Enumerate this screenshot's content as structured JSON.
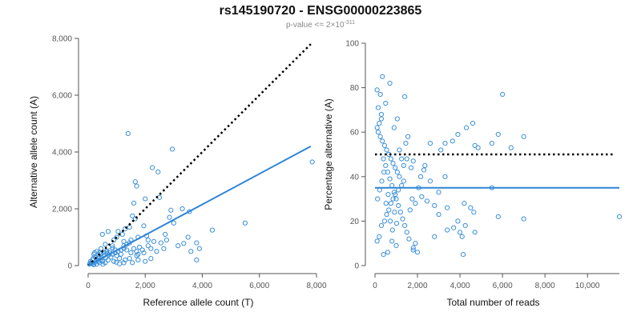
{
  "title": "rs145190720 - ENSG00000223865",
  "subtitle": {
    "prefix": "p-value <= 2×10",
    "exponent": "-311"
  },
  "colors": {
    "points": "#3a8fd9",
    "fit": "#2f86d6",
    "reference": "#000000",
    "axis": "#555555"
  },
  "chart_data": [
    {
      "type": "scatter",
      "xlabel": "Reference allele count (T)",
      "ylabel": "Alternative allele count (A)",
      "xlim": [
        0,
        8000
      ],
      "ylim": [
        0,
        8000
      ],
      "xticks": [
        0,
        2000,
        4000,
        6000,
        8000
      ],
      "yticks": [
        0,
        2000,
        4000,
        6000,
        8000
      ],
      "xtick_labels": [
        "0",
        "2,000",
        "4,000",
        "6,000",
        "8,000"
      ],
      "ytick_labels": [
        "0",
        "2,000",
        "4,000",
        "6,000",
        "8,000"
      ],
      "reference_line": {
        "style": "dotted",
        "x": [
          0,
          7800
        ],
        "y": [
          0,
          7800
        ]
      },
      "fit_line": {
        "style": "solid",
        "x": [
          0,
          7800
        ],
        "y": [
          0,
          4200
        ]
      },
      "points": [
        [
          1400,
          4650
        ],
        [
          2950,
          4100
        ],
        [
          7850,
          3650
        ],
        [
          2250,
          3450
        ],
        [
          2450,
          3300
        ],
        [
          1650,
          2950
        ],
        [
          1700,
          2800
        ],
        [
          2500,
          2400
        ],
        [
          2000,
          2350
        ],
        [
          1600,
          2200
        ],
        [
          3300,
          2000
        ],
        [
          2900,
          1950
        ],
        [
          3550,
          1900
        ],
        [
          2850,
          1700
        ],
        [
          1550,
          1750
        ],
        [
          1650,
          1650
        ],
        [
          5500,
          1500
        ],
        [
          3000,
          1500
        ],
        [
          1950,
          1400
        ],
        [
          1450,
          1350
        ],
        [
          4350,
          1250
        ],
        [
          1300,
          1300
        ],
        [
          700,
          1200
        ],
        [
          1050,
          1200
        ],
        [
          500,
          1100
        ],
        [
          1200,
          1100
        ],
        [
          1000,
          1000
        ],
        [
          3500,
          1000
        ],
        [
          2050,
          1050
        ],
        [
          2750,
          900
        ],
        [
          2300,
          850
        ],
        [
          1250,
          850
        ],
        [
          2550,
          800
        ],
        [
          3350,
          780
        ],
        [
          3150,
          700
        ],
        [
          3900,
          600
        ],
        [
          2650,
          600
        ],
        [
          3600,
          500
        ],
        [
          2400,
          500
        ],
        [
          1950,
          450
        ],
        [
          1500,
          450
        ],
        [
          1750,
          400
        ],
        [
          1150,
          400
        ],
        [
          3800,
          200
        ],
        [
          2200,
          250
        ],
        [
          1750,
          200
        ],
        [
          1550,
          100
        ],
        [
          1700,
          350
        ],
        [
          900,
          900
        ],
        [
          850,
          700
        ],
        [
          600,
          750
        ],
        [
          650,
          500
        ],
        [
          450,
          600
        ],
        [
          300,
          500
        ],
        [
          400,
          450
        ],
        [
          200,
          400
        ],
        [
          250,
          300
        ],
        [
          150,
          200
        ],
        [
          100,
          100
        ],
        [
          50,
          50
        ],
        [
          350,
          250
        ],
        [
          550,
          350
        ],
        [
          750,
          450
        ],
        [
          950,
          550
        ],
        [
          800,
          300
        ],
        [
          1000,
          350
        ],
        [
          1100,
          250
        ],
        [
          1300,
          200
        ],
        [
          1450,
          250
        ],
        [
          900,
          150
        ],
        [
          700,
          200
        ],
        [
          500,
          150
        ],
        [
          400,
          100
        ],
        [
          600,
          100
        ],
        [
          300,
          50
        ],
        [
          200,
          30
        ],
        [
          120,
          80
        ],
        [
          80,
          150
        ],
        [
          180,
          250
        ],
        [
          280,
          180
        ],
        [
          350,
          380
        ],
        [
          480,
          280
        ],
        [
          620,
          280
        ],
        [
          720,
          380
        ],
        [
          850,
          400
        ],
        [
          950,
          450
        ],
        [
          1050,
          500
        ],
        [
          1150,
          550
        ],
        [
          1250,
          600
        ],
        [
          1350,
          550
        ],
        [
          1600,
          600
        ],
        [
          1800,
          650
        ],
        [
          2100,
          700
        ],
        [
          2200,
          600
        ],
        [
          1900,
          550
        ],
        [
          1700,
          500
        ],
        [
          2000,
          150
        ],
        [
          1250,
          100
        ],
        [
          1100,
          60
        ],
        [
          980,
          120
        ],
        [
          520,
          50
        ],
        [
          430,
          200
        ],
        [
          360,
          150
        ],
        [
          250,
          120
        ],
        [
          160,
          60
        ],
        [
          230,
          450
        ],
        [
          380,
          320
        ],
        [
          460,
          420
        ],
        [
          560,
          470
        ],
        [
          660,
          430
        ],
        [
          760,
          520
        ],
        [
          860,
          620
        ],
        [
          1250,
          700
        ],
        [
          1350,
          750
        ],
        [
          1450,
          800
        ],
        [
          1500,
          900
        ],
        [
          1750,
          1000
        ],
        [
          2100,
          900
        ],
        [
          2700,
          1100
        ],
        [
          3800,
          800
        ]
      ]
    },
    {
      "type": "scatter",
      "xlabel": "Total number of reads",
      "ylabel": "Percentage alternative (A)",
      "xlim": [
        0,
        11500
      ],
      "ylim": [
        0,
        100
      ],
      "xticks": [
        0,
        2000,
        4000,
        6000,
        8000,
        10000
      ],
      "yticks": [
        0,
        20,
        40,
        60,
        80,
        100
      ],
      "xtick_labels": [
        "0",
        "2,000",
        "4,000",
        "6,000",
        "8,000",
        "10,000"
      ],
      "ytick_labels": [
        "0",
        "20",
        "40",
        "60",
        "80",
        "100"
      ],
      "reference_line": {
        "style": "dotted",
        "x": [
          0,
          11300
        ],
        "y": [
          50,
          50
        ]
      },
      "fit_line": {
        "style": "solid",
        "x": [
          0,
          11500
        ],
        "y": [
          35,
          35
        ]
      },
      "points": [
        [
          350,
          85
        ],
        [
          700,
          82
        ],
        [
          6000,
          77
        ],
        [
          1400,
          76
        ],
        [
          100,
          79
        ],
        [
          250,
          77
        ],
        [
          500,
          73
        ],
        [
          150,
          71
        ],
        [
          300,
          68
        ],
        [
          1050,
          66
        ],
        [
          4600,
          64
        ],
        [
          4300,
          62
        ],
        [
          900,
          62
        ],
        [
          5800,
          59
        ],
        [
          7000,
          58
        ],
        [
          3900,
          59
        ],
        [
          3300,
          55
        ],
        [
          3650,
          56
        ],
        [
          4700,
          54
        ],
        [
          5500,
          55
        ],
        [
          4850,
          53
        ],
        [
          6400,
          53
        ],
        [
          3100,
          52
        ],
        [
          2600,
          55
        ],
        [
          1500,
          48
        ],
        [
          1800,
          47
        ],
        [
          2300,
          43
        ],
        [
          1700,
          44
        ],
        [
          3300,
          40
        ],
        [
          2600,
          38
        ],
        [
          3000,
          33
        ],
        [
          2200,
          31
        ],
        [
          2450,
          29
        ],
        [
          1900,
          28
        ],
        [
          2800,
          27
        ],
        [
          3400,
          26
        ],
        [
          4500,
          26
        ],
        [
          4650,
          24
        ],
        [
          4200,
          28
        ],
        [
          3000,
          23
        ],
        [
          3900,
          20
        ],
        [
          4250,
          18
        ],
        [
          3700,
          17
        ],
        [
          3400,
          16
        ],
        [
          4000,
          15
        ],
        [
          4100,
          13
        ],
        [
          5500,
          35
        ],
        [
          5800,
          22
        ],
        [
          7000,
          21
        ],
        [
          11500,
          22
        ],
        [
          4700,
          15
        ],
        [
          2800,
          13
        ],
        [
          1900,
          10
        ],
        [
          1800,
          8
        ],
        [
          1800,
          7
        ],
        [
          2000,
          6
        ],
        [
          4150,
          5
        ],
        [
          1000,
          9
        ],
        [
          800,
          11
        ],
        [
          600,
          6
        ],
        [
          400,
          5
        ],
        [
          200,
          13
        ],
        [
          100,
          11
        ],
        [
          300,
          18
        ],
        [
          450,
          20
        ],
        [
          550,
          23
        ],
        [
          650,
          25
        ],
        [
          750,
          28
        ],
        [
          850,
          30
        ],
        [
          950,
          32
        ],
        [
          1100,
          34
        ],
        [
          1250,
          36
        ],
        [
          1350,
          38
        ],
        [
          1150,
          40
        ],
        [
          1050,
          42
        ],
        [
          950,
          44
        ],
        [
          850,
          46
        ],
        [
          750,
          48
        ],
        [
          650,
          50
        ],
        [
          550,
          52
        ],
        [
          450,
          54
        ],
        [
          350,
          56
        ],
        [
          250,
          58
        ],
        [
          150,
          60
        ],
        [
          100,
          62
        ],
        [
          200,
          64
        ],
        [
          300,
          66
        ],
        [
          400,
          48
        ],
        [
          500,
          45
        ],
        [
          600,
          42
        ],
        [
          700,
          39
        ],
        [
          800,
          36
        ],
        [
          900,
          33
        ],
        [
          1000,
          30
        ],
        [
          1100,
          27
        ],
        [
          1200,
          24
        ],
        [
          1300,
          21
        ],
        [
          1400,
          18
        ],
        [
          1500,
          15
        ],
        [
          1600,
          12
        ],
        [
          120,
          30
        ],
        [
          220,
          34
        ],
        [
          320,
          38
        ],
        [
          420,
          42
        ],
        [
          520,
          28
        ],
        [
          620,
          32
        ],
        [
          720,
          20
        ],
        [
          820,
          16
        ],
        [
          920,
          24
        ],
        [
          1020,
          19
        ],
        [
          1150,
          52
        ],
        [
          1250,
          48
        ],
        [
          1350,
          45
        ],
        [
          1450,
          55
        ],
        [
          1550,
          58
        ],
        [
          1650,
          25
        ],
        [
          1750,
          30
        ],
        [
          2050,
          35
        ],
        [
          2150,
          40
        ],
        [
          2350,
          45
        ]
      ]
    }
  ]
}
